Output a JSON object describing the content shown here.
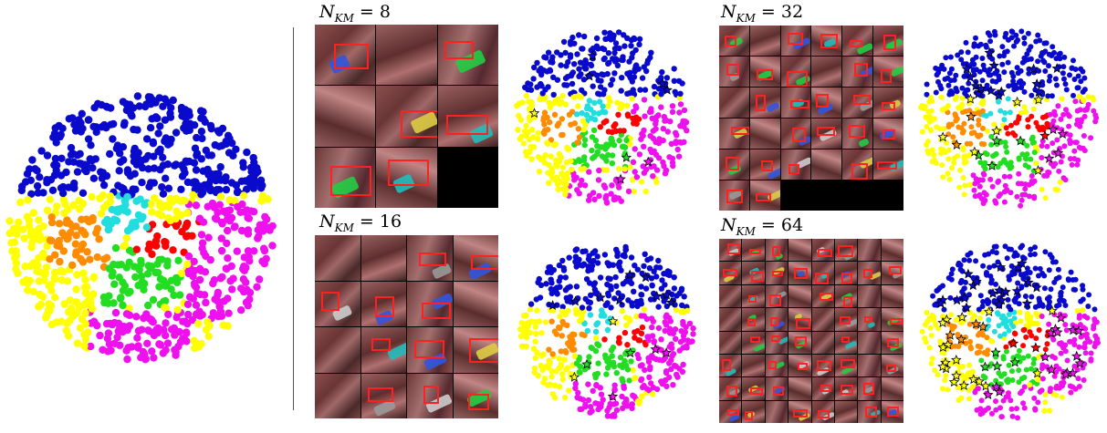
{
  "panels": [
    {
      "id": "nkm8",
      "label_value": "8"
    },
    {
      "id": "nkm16",
      "label_value": "16"
    },
    {
      "id": "nkm32",
      "label_value": "32"
    },
    {
      "id": "nkm64",
      "label_value": "64"
    }
  ],
  "label_prefix": "N",
  "label_sub": "KM",
  "label_eq": " = ",
  "colors": {
    "blue": "#0a0acd",
    "cyan": "#22dddd",
    "orange": "#ff8c00",
    "red": "#ff0000",
    "green": "#22dd22",
    "yellow": "#ffff00",
    "magenta": "#ee11ee",
    "black": "#000000"
  }
}
